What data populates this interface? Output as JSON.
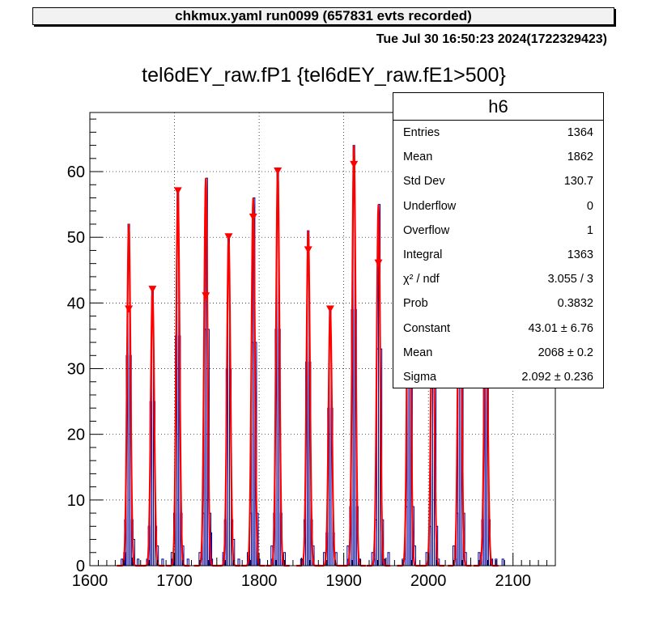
{
  "banner": "chkmux.yaml  run0099 (657831 evts recorded)",
  "timestamp": "Tue Jul 30 16:50:23 2024(1722329423)",
  "stats": {
    "name": "h6",
    "rows": [
      {
        "k": "Entries",
        "v": "1364"
      },
      {
        "k": "Mean",
        "v": "1862"
      },
      {
        "k": "Std Dev",
        "v": "130.7"
      },
      {
        "k": "Underflow",
        "v": "0"
      },
      {
        "k": "Overflow",
        "v": "1"
      },
      {
        "k": "Integral",
        "v": "1363"
      },
      {
        "k": "χ² / ndf",
        "v": "3.055 / 3"
      },
      {
        "k": "Prob",
        "v": "0.3832"
      },
      {
        "k": "Constant",
        "v": "43.01  ± 6.76"
      },
      {
        "k": "Mean",
        "v": "2068  ± 0.2"
      },
      {
        "k": "Sigma",
        "v": "2.092  ± 0.236"
      }
    ]
  },
  "colors": {
    "hist": "#000099",
    "fit": "#ff0000",
    "marker": "#ff0000"
  },
  "chart_data": {
    "type": "bar",
    "title": "tel6dEY_raw.fP1 {tel6dEY_raw.fE1>500}",
    "xlim": [
      1600,
      2150
    ],
    "ylim": [
      0,
      69
    ],
    "xticks": [
      1600,
      1700,
      1800,
      1900,
      2000,
      2100
    ],
    "yticks": [
      0,
      10,
      20,
      30,
      40,
      50,
      60
    ],
    "grid": true,
    "peaks": [
      {
        "x": 1646,
        "height": 52,
        "sigma": 2.0,
        "marker_y": 39
      },
      {
        "x": 1674,
        "height": 42,
        "sigma": 2.0,
        "marker_y": 42
      },
      {
        "x": 1704,
        "height": 57,
        "sigma": 2.0,
        "marker_y": 57
      },
      {
        "x": 1737,
        "height": 59,
        "sigma": 2.0,
        "marker_y": 41
      },
      {
        "x": 1764,
        "height": 50,
        "sigma": 2.0,
        "marker_y": 50
      },
      {
        "x": 1793,
        "height": 56,
        "sigma": 2.0,
        "marker_y": 53
      },
      {
        "x": 1822,
        "height": 60,
        "sigma": 2.0,
        "marker_y": 60
      },
      {
        "x": 1858,
        "height": 51,
        "sigma": 2.0,
        "marker_y": 48
      },
      {
        "x": 1884,
        "height": 39,
        "sigma": 2.0,
        "marker_y": 39
      },
      {
        "x": 1912,
        "height": 64,
        "sigma": 2.0,
        "marker_y": 61
      },
      {
        "x": 1941,
        "height": 55,
        "sigma": 2.0,
        "marker_y": 46
      },
      {
        "x": 1977,
        "height": 66,
        "sigma": 2.0,
        "marker_y": 66
      },
      {
        "x": 2005,
        "height": 45,
        "sigma": 2.0,
        "marker_y": 44
      },
      {
        "x": 2037,
        "height": 60,
        "sigma": 2.0,
        "marker_y": 59
      },
      {
        "x": 2068,
        "height": 43,
        "sigma": 2.092,
        "marker_y": 43
      }
    ],
    "baseline_bins": [
      {
        "x": 1638,
        "y": 1
      },
      {
        "x": 1641,
        "y": 2
      },
      {
        "x": 1652,
        "y": 4
      },
      {
        "x": 1657,
        "y": 1
      },
      {
        "x": 1668,
        "y": 1
      },
      {
        "x": 1680,
        "y": 3
      },
      {
        "x": 1686,
        "y": 1
      },
      {
        "x": 1697,
        "y": 2
      },
      {
        "x": 1710,
        "y": 3
      },
      {
        "x": 1716,
        "y": 1
      },
      {
        "x": 1730,
        "y": 2
      },
      {
        "x": 1743,
        "y": 5
      },
      {
        "x": 1758,
        "y": 2
      },
      {
        "x": 1770,
        "y": 4
      },
      {
        "x": 1776,
        "y": 1
      },
      {
        "x": 1787,
        "y": 2
      },
      {
        "x": 1799,
        "y": 1
      },
      {
        "x": 1815,
        "y": 3
      },
      {
        "x": 1830,
        "y": 2
      },
      {
        "x": 1850,
        "y": 1
      },
      {
        "x": 1864,
        "y": 3
      },
      {
        "x": 1877,
        "y": 2
      },
      {
        "x": 1891,
        "y": 2
      },
      {
        "x": 1905,
        "y": 3
      },
      {
        "x": 1919,
        "y": 1
      },
      {
        "x": 1934,
        "y": 2
      },
      {
        "x": 1947,
        "y": 1
      },
      {
        "x": 1953,
        "y": 2
      },
      {
        "x": 1970,
        "y": 1
      },
      {
        "x": 1984,
        "y": 3
      },
      {
        "x": 1998,
        "y": 2
      },
      {
        "x": 2012,
        "y": 1
      },
      {
        "x": 2030,
        "y": 3
      },
      {
        "x": 2044,
        "y": 2
      },
      {
        "x": 2060,
        "y": 2
      },
      {
        "x": 2075,
        "y": 1
      },
      {
        "x": 2080,
        "y": 1
      },
      {
        "x": 2088,
        "y": 1
      }
    ]
  }
}
